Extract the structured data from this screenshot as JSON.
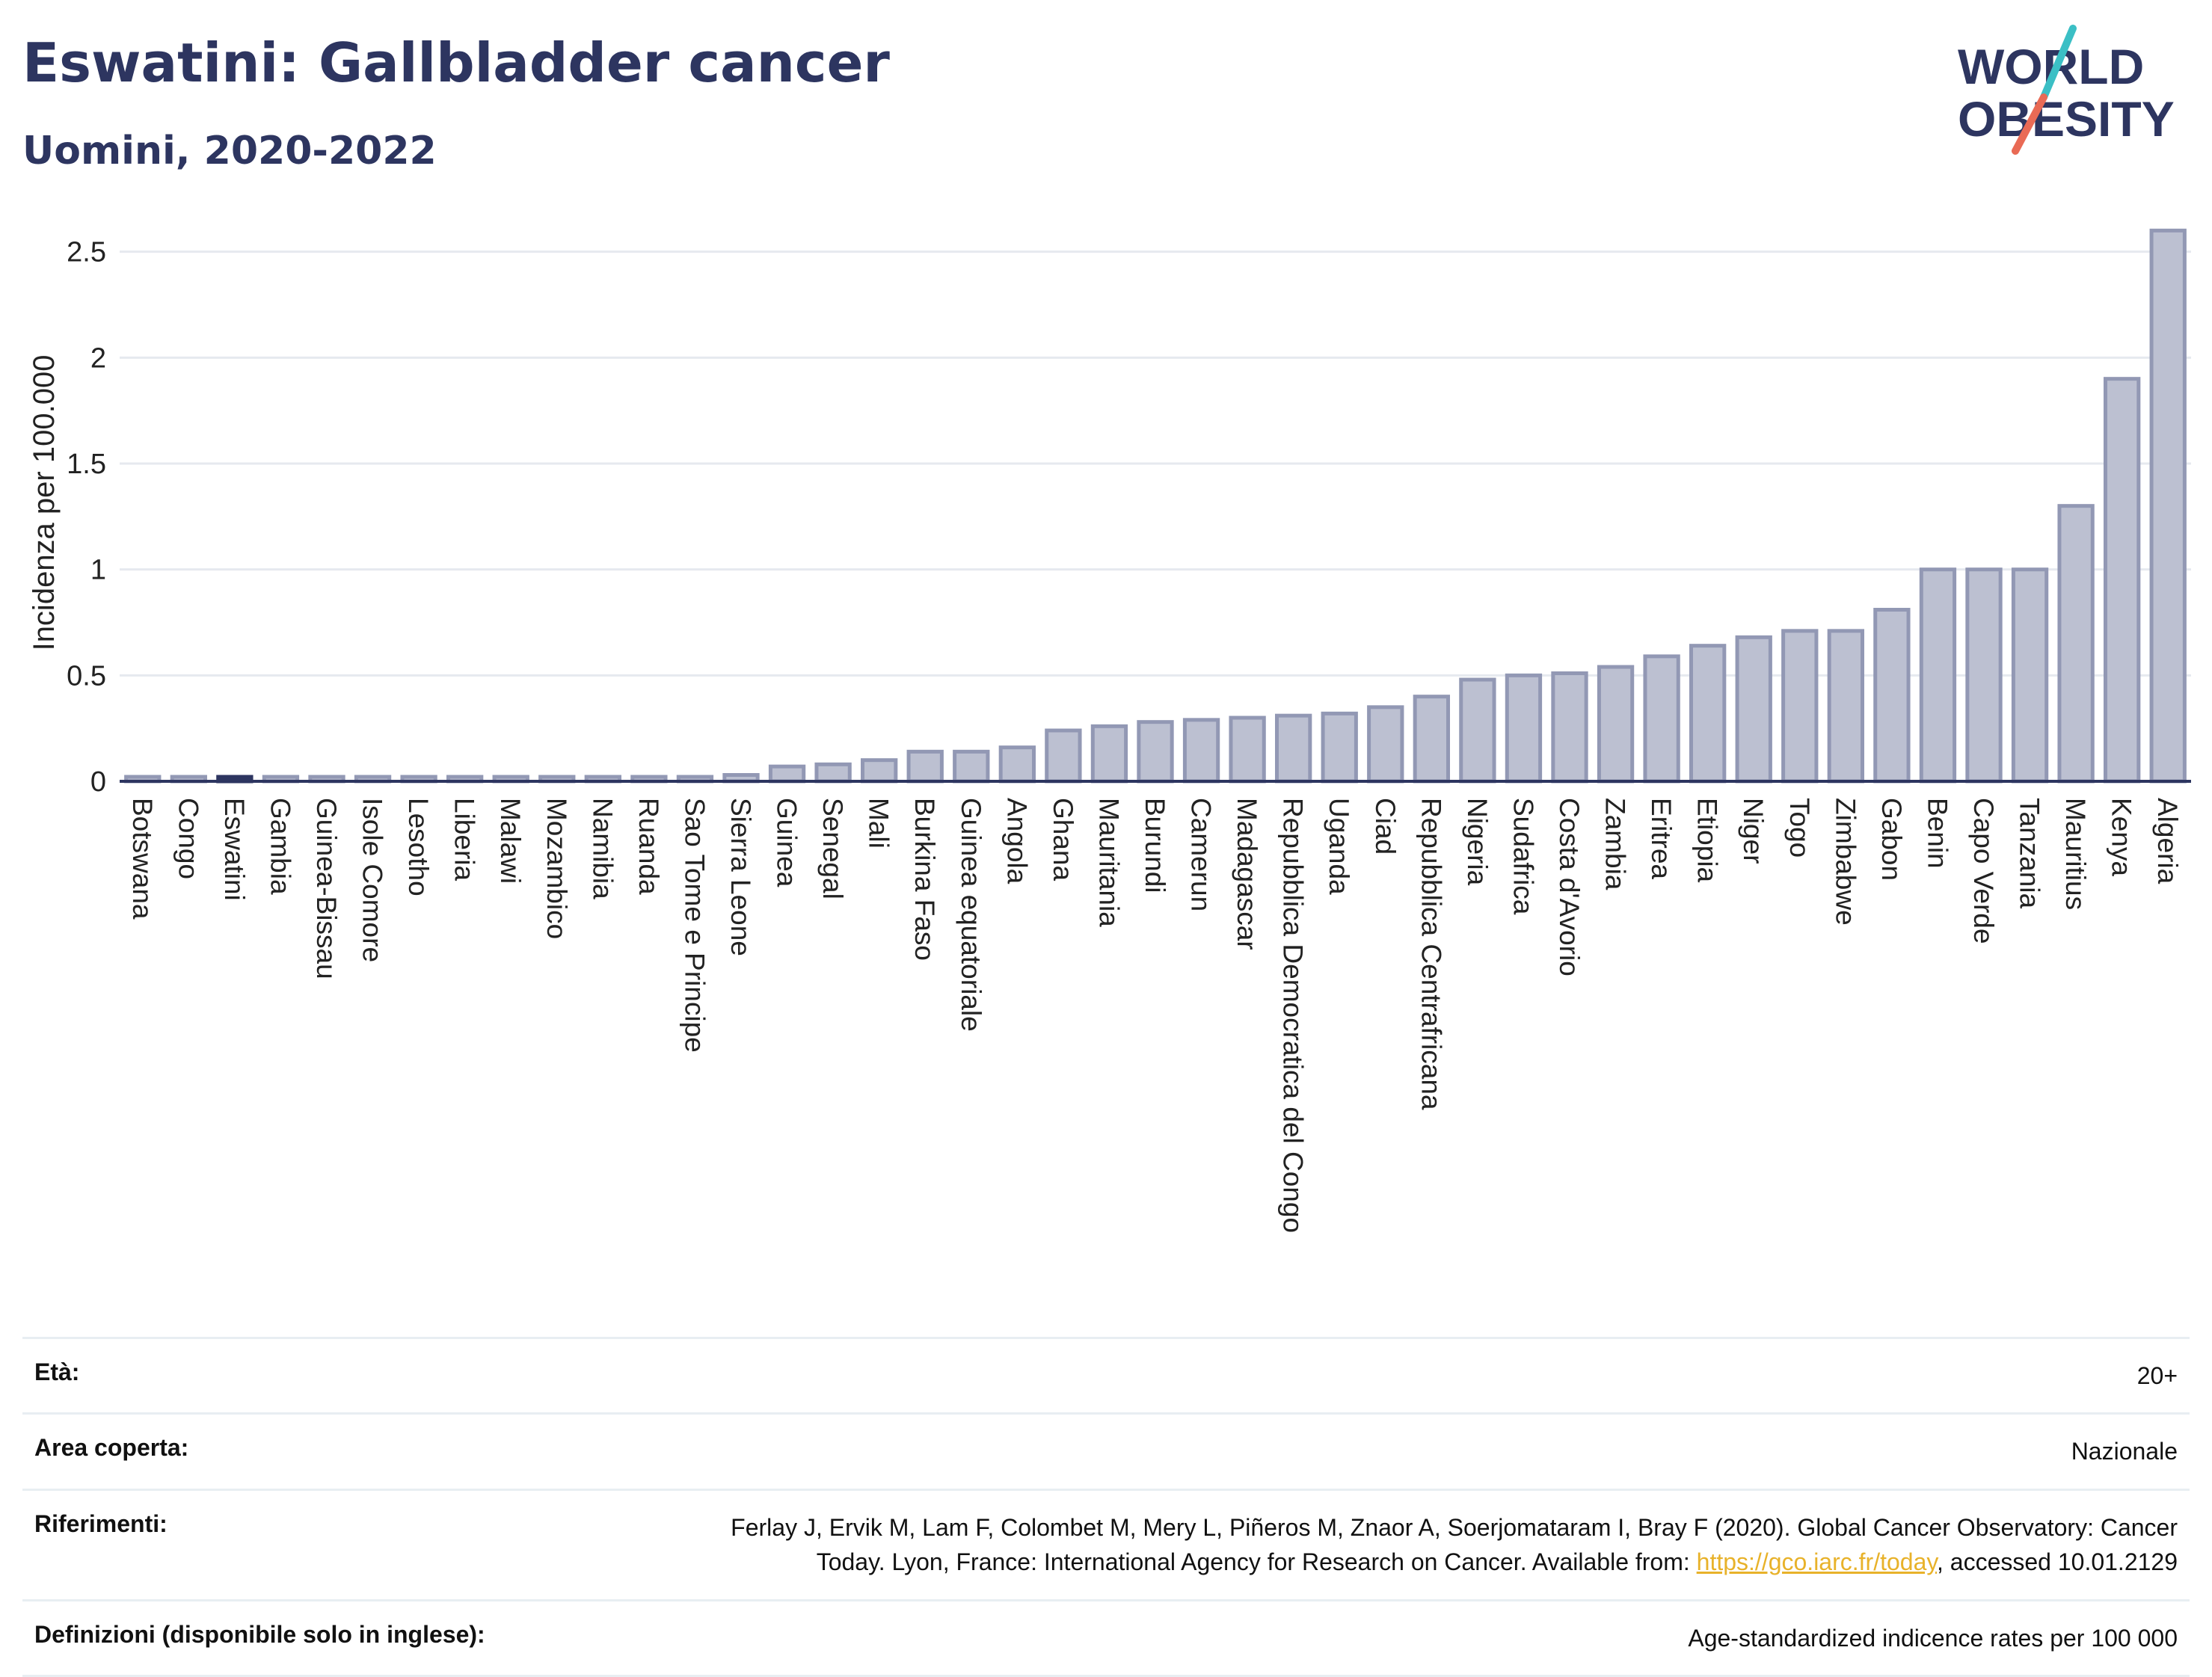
{
  "header": {
    "title": "Eswatini: Gallbladder cancer",
    "subtitle": "Uomini, 2020-2022"
  },
  "logo": {
    "line1": "WORLD",
    "line2": "OBESITY",
    "colors": {
      "text": "#2d3560",
      "teal": "#3bbfc5",
      "coral": "#e96a55"
    }
  },
  "chart_data": {
    "type": "bar",
    "ylabel": "Incidenza per 100.000",
    "ylim": [
      0,
      2.7
    ],
    "yticks": [
      0,
      0.5,
      1,
      1.5,
      2,
      2.5
    ],
    "ytick_labels": [
      "0",
      "0.5",
      "1",
      "1.5",
      "2",
      "2.5"
    ],
    "grid": true,
    "highlight": "Eswatini",
    "colors": {
      "bar_fill": "#bcc0d1",
      "bar_stroke": "#9298b4",
      "highlight": "#2d3560",
      "grid": "#e6e9ef",
      "axis": "#2d3560"
    },
    "categories": [
      "Botswana",
      "Congo",
      "Eswatini",
      "Gambia",
      "Guinea-Bissau",
      "Isole Comore",
      "Lesotho",
      "Liberia",
      "Malawi",
      "Mozambico",
      "Namibia",
      "Ruanda",
      "Sao Tome e Principe",
      "Sierra Leone",
      "Guinea",
      "Senegal",
      "Mali",
      "Burkina Faso",
      "Guinea equatoriale",
      "Angola",
      "Ghana",
      "Mauritania",
      "Burundi",
      "Camerun",
      "Madagascar",
      "Repubblica Democratica del Congo",
      "Uganda",
      "Ciad",
      "Repubblica Centrafricana",
      "Nigeria",
      "Sudafrica",
      "Costa d'Avorio",
      "Zambia",
      "Eritrea",
      "Etiopia",
      "Niger",
      "Togo",
      "Zimbabwe",
      "Gabon",
      "Benin",
      "Capo Verde",
      "Tanzania",
      "Mauritius",
      "Kenya",
      "Algeria"
    ],
    "values": [
      0.01,
      0.01,
      0.01,
      0.01,
      0.01,
      0.01,
      0.01,
      0.01,
      0.01,
      0.01,
      0.01,
      0.01,
      0.01,
      0.03,
      0.07,
      0.08,
      0.1,
      0.14,
      0.14,
      0.16,
      0.24,
      0.26,
      0.28,
      0.29,
      0.3,
      0.31,
      0.32,
      0.35,
      0.4,
      0.48,
      0.5,
      0.51,
      0.54,
      0.59,
      0.64,
      0.68,
      0.71,
      0.71,
      0.81,
      1.0,
      1.0,
      1.0,
      1.3,
      1.9,
      2.6
    ]
  },
  "info": [
    {
      "label": "Età:",
      "value": "20+"
    },
    {
      "label": "Area coperta:",
      "value": "Nazionale"
    },
    {
      "label": "Riferimenti:",
      "value_line1": "Ferlay J, Ervik M, Lam F, Colombet M, Mery L, Piñeros M, Znaor A, Soerjomataram I, Bray F (2020). Global Cancer Observatory: Cancer",
      "value_line2_prefix": "Today. Lyon, France: International Agency for Research on Cancer. Available from: ",
      "link": "https://gco.iarc.fr/today",
      "value_line2_suffix": ", accessed 10.01.2129"
    },
    {
      "label": "Definizioni (disponibile solo in inglese):",
      "value": "Age-standardized indicence rates per 100 000"
    }
  ]
}
